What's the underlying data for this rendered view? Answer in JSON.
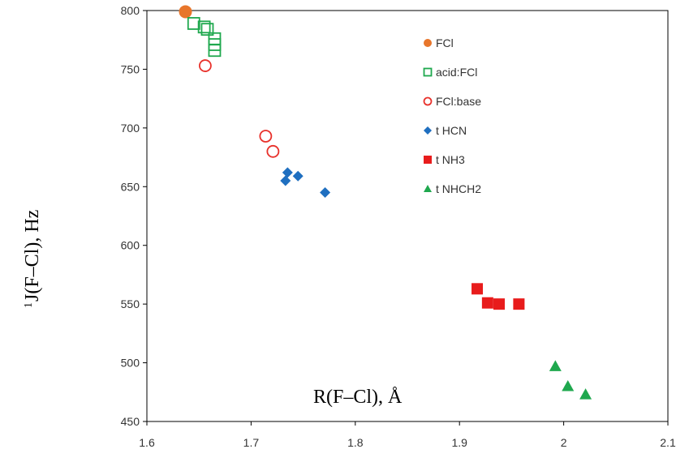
{
  "chart_data": {
    "type": "scatter",
    "xlabel": "R(F–Cl), Å",
    "ylabel_superscript": "1",
    "ylabel": "J(F–Cl), Hz",
    "xlim": [
      1.6,
      2.1
    ],
    "ylim": [
      450,
      800
    ],
    "xticks": [
      "1.6",
      "1.7",
      "1.8",
      "1.9",
      "2",
      "2.1"
    ],
    "yticks": [
      "450",
      "500",
      "550",
      "600",
      "650",
      "700",
      "750",
      "800"
    ],
    "grid": false,
    "legend_position": "top-right",
    "series": [
      {
        "name": "FCl",
        "marker": "circle-filled",
        "color": "#E8762B",
        "points": [
          [
            1.637,
            799
          ]
        ]
      },
      {
        "name": "acid:FCl",
        "marker": "square-open",
        "color": "#1FA84E",
        "points": [
          [
            1.645,
            789
          ],
          [
            1.655,
            786
          ],
          [
            1.658,
            784
          ],
          [
            1.665,
            776
          ],
          [
            1.665,
            771
          ],
          [
            1.665,
            766
          ]
        ]
      },
      {
        "name": "FCl:base",
        "marker": "circle-open",
        "color": "#E8312B",
        "points": [
          [
            1.656,
            753
          ],
          [
            1.714,
            693
          ],
          [
            1.721,
            680
          ]
        ]
      },
      {
        "name": "t HCN",
        "marker": "diamond-filled",
        "color": "#1F6FC0",
        "points": [
          [
            1.735,
            662
          ],
          [
            1.745,
            659
          ],
          [
            1.733,
            655
          ],
          [
            1.771,
            645
          ]
        ]
      },
      {
        "name": "t NH3",
        "marker": "square-filled",
        "color": "#E81C1C",
        "points": [
          [
            1.917,
            563
          ],
          [
            1.927,
            551
          ],
          [
            1.938,
            550
          ],
          [
            1.957,
            550
          ]
        ]
      },
      {
        "name": "t NHCH2",
        "marker": "triangle-filled",
        "color": "#1FA84E",
        "points": [
          [
            1.992,
            497
          ],
          [
            2.004,
            480
          ],
          [
            2.021,
            473
          ]
        ]
      }
    ]
  }
}
